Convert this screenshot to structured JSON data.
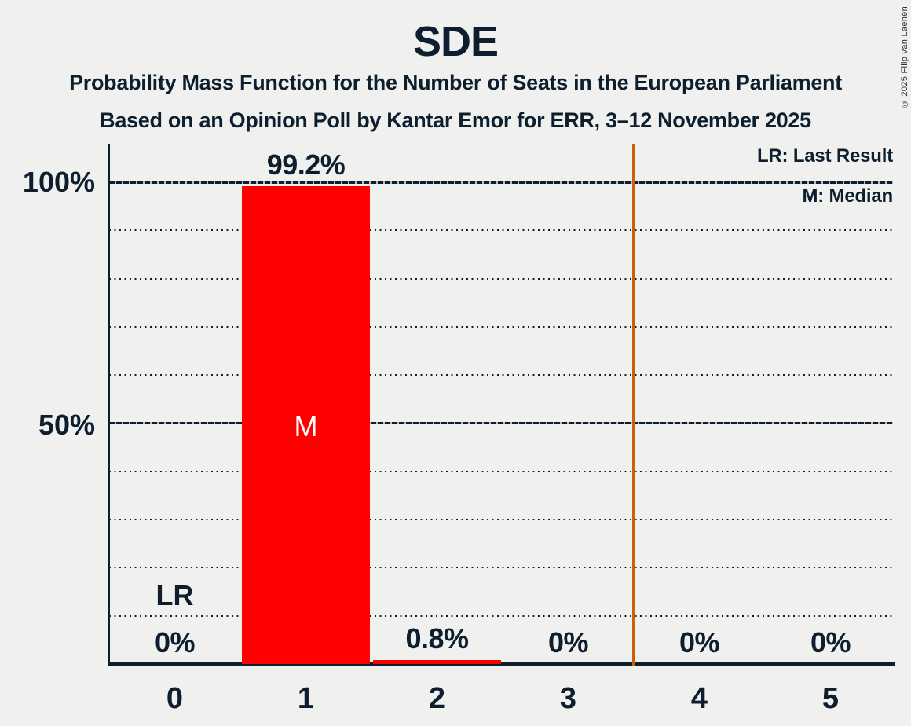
{
  "title": "SDE",
  "subtitles": [
    "Probability Mass Function for the Number of Seats in the European Parliament",
    "Based on an Opinion Poll by Kantar Emor for ERR, 3–12 November 2025"
  ],
  "copyright": "© 2025 Filip van Laenen",
  "legend": {
    "last_result": "LR: Last Result",
    "median": "M: Median"
  },
  "chart_data": {
    "type": "bar",
    "title": "SDE",
    "subtitle": "Probability Mass Function for the Number of Seats in the European Parliament",
    "source": "Based on an Opinion Poll by Kantar Emor for ERR, 3–12 November 2025",
    "categories": [
      "0",
      "1",
      "2",
      "3",
      "4",
      "5"
    ],
    "values": [
      0,
      99.2,
      0.8,
      0,
      0,
      0
    ],
    "value_labels": [
      "0%",
      "99.2%",
      "0.8%",
      "0%",
      "0%",
      "0%"
    ],
    "y_ticks": [
      {
        "label": "100%",
        "value": 100
      },
      {
        "label": "50%",
        "value": 50
      }
    ],
    "ylim": [
      0,
      108
    ],
    "gridline_step_pct": 10,
    "grid": "horizontal-dotted, solid at 50 and 100",
    "legend_position": "top-right",
    "annotations": {
      "last_result_label": "LR",
      "last_result_seats": 0,
      "median_label": "M",
      "median_seats": 1,
      "majority_line_at_seats": 3.5
    },
    "colors": {
      "bar": "#ff0000",
      "majority_line": "#ce5f0a",
      "text": "#0d1f2e",
      "median_text": "#ffffff",
      "background": "#f0f0ef"
    }
  }
}
